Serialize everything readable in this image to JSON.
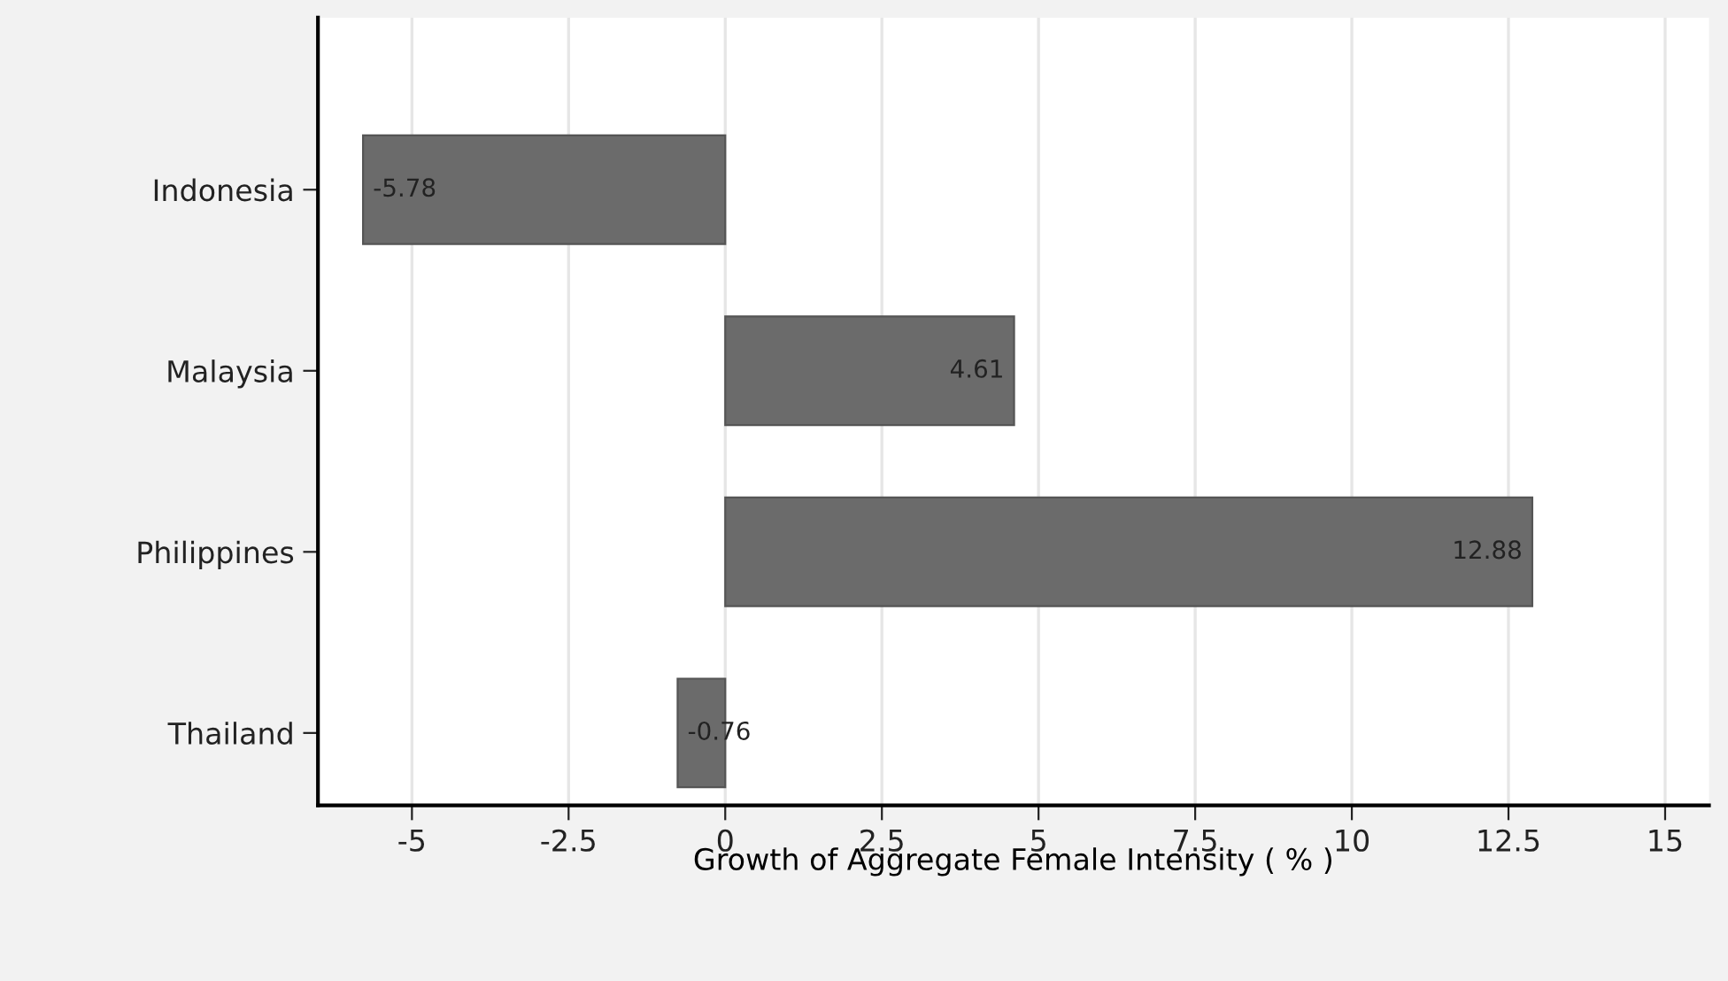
{
  "chart_data": {
    "type": "bar",
    "orientation": "horizontal",
    "xlabel": "Growth of Aggregate Female Intensity ( % )",
    "categories": [
      "Indonesia",
      "Malaysia",
      "Philippines",
      "Thailand"
    ],
    "values": [
      -5.78,
      4.61,
      12.88,
      -0.76
    ],
    "color": "#6b6b6b",
    "data_labels": true,
    "xlim": [
      -6.5,
      15.7
    ],
    "xticks": [
      -5,
      -2.5,
      0,
      2.5,
      5,
      7.5,
      10,
      12.5,
      15
    ],
    "grid": "x"
  }
}
